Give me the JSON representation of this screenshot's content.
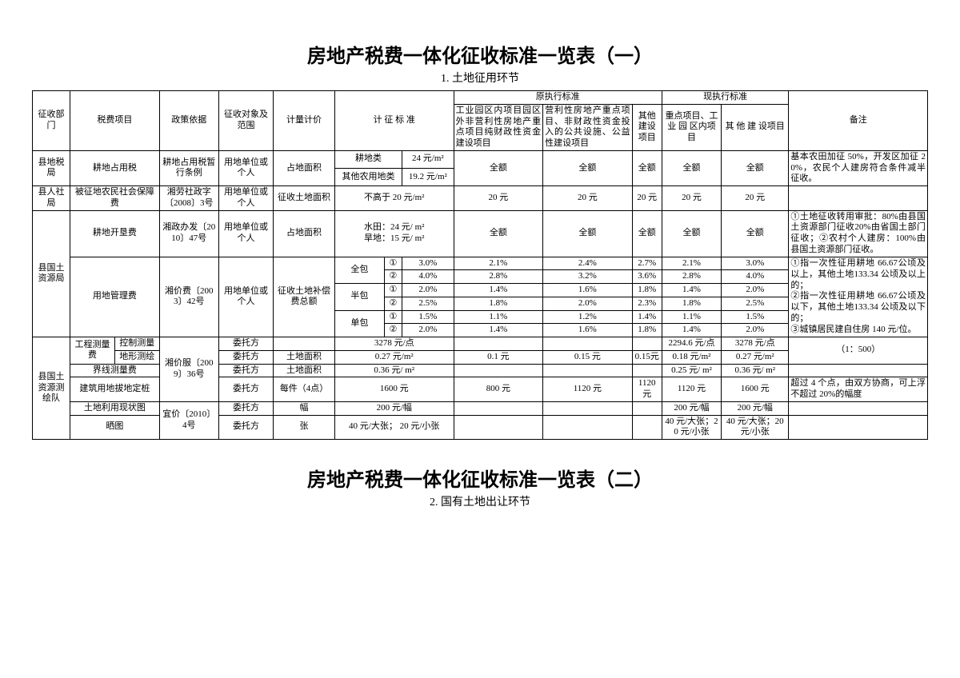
{
  "title1": "房地产税费一体化征收标准一览表（一）",
  "subtitle1": "1.  土地征用环节",
  "title2": "房地产税费一体化征收标准一览表（二）",
  "subtitle2": "2. 国有土地出让环节",
  "headers": {
    "dept": "征收部门",
    "item": "税费项目",
    "basis": "政策依据",
    "target": "征收对象及范围",
    "measure": "计量计价",
    "std": "计  征  标  准",
    "orig": "原执行标准",
    "cur": "现执行标准",
    "note": "备注",
    "orig1": "工业园区内项目园区外非营利性房地产重点项目纯财政性资金建设项目",
    "orig2": "营利性房地产重点项目、非财政性资金投入的公共设施、公益性建设项目",
    "orig3": "其他建设项目",
    "cur1": "重点项目、工 业 园 区内项目",
    "cur2": "其 他 建 设项目"
  },
  "r1": {
    "dept": "县地税局",
    "item": "耕地占用税",
    "basis": "耕地占用税暂行条例",
    "target": "用地单位或个人",
    "measure": "占地面积",
    "std1a": "耕地类",
    "std1b": "24 元/m²",
    "std2a": "其他农用地类",
    "std2b": "19.2 元/m²",
    "orig1": "全额",
    "orig2": "全额",
    "orig3": "全额",
    "cur1": "全额",
    "cur2": "全额",
    "note": "基本农田加征 50%，开发区加征 20%，农民个人建房符合条件减半征收。"
  },
  "r2": {
    "dept": "县人社局",
    "item": "被征地农民社会保障费",
    "basis": "湘劳社政字〔2008〕3号",
    "target": "用地单位或个人",
    "measure": "征收土地面积",
    "std": "不高于 20 元/m²",
    "orig1": "20 元",
    "orig2": "20 元",
    "orig3": "20 元",
    "cur1": "20 元",
    "cur2": "20 元",
    "note": ""
  },
  "r3": {
    "dept": "县国土资源局",
    "item": "耕地开垦费",
    "basis": "湘政办发〔2010〕47号",
    "target": "用地单位或个人",
    "measure": "占地面积",
    "std": "水田：24 元/ m²\n旱地：15 元/ m²",
    "orig1": "全额",
    "orig2": "全额",
    "orig3": "全额",
    "cur1": "全额",
    "cur2": "全额",
    "note": "①土地征收转用审批：80%由县国土资源部门征收20%由省国土部门征收；②农村个人建房：100%由县国土资源部门征收。"
  },
  "r4": {
    "item": "用地管理费",
    "basis": "湘价费〔2003〕42号",
    "target": "用地单位或个人",
    "measure": "征收土地补偿费总额",
    "p1": "全包",
    "p2": "半包",
    "p3": "单包",
    "c1": "①",
    "c2": "②",
    "rows": [
      {
        "s": "3.0%",
        "o1": "2.1%",
        "o2": "2.4%",
        "o3": "2.7%",
        "u1": "2.1%",
        "u2": "3.0%"
      },
      {
        "s": "4.0%",
        "o1": "2.8%",
        "o2": "3.2%",
        "o3": "3.6%",
        "u1": "2.8%",
        "u2": "4.0%"
      },
      {
        "s": "2.0%",
        "o1": "1.4%",
        "o2": "1.6%",
        "o3": "1.8%",
        "u1": "1.4%",
        "u2": "2.0%"
      },
      {
        "s": "2.5%",
        "o1": "1.8%",
        "o2": "2.0%",
        "o3": "2.3%",
        "u1": "1.8%",
        "u2": "2.5%"
      },
      {
        "s": "1.5%",
        "o1": "1.1%",
        "o2": "1.2%",
        "o3": "1.4%",
        "u1": "1.1%",
        "u2": "1.5%"
      },
      {
        "s": "2.0%",
        "o1": "1.4%",
        "o2": "1.6%",
        "o3": "1.8%",
        "u1": "1.4%",
        "u2": "2.0%"
      }
    ],
    "note": "①指一次性征用耕地 66.67公顷及以上，其他土地133.34 公顷及以上的；\n②指一次性征用耕地 66.67公顷及以下，其他土地133.34 公顷及以下的；\n③城镇居民建自住房 140 元/位。"
  },
  "r5": {
    "dept": "县国土资源测绘队",
    "item1": "工程测量费",
    "sub1": "控制测量",
    "sub2": "地形测绘",
    "basis": "湘价服〔2009〕36号",
    "target": "委托方",
    "measure2": "土地面积",
    "std1": "3278 元/点",
    "std2": "0.27 元/m²",
    "o1_2": "0.1 元",
    "o2_2": "0.15 元",
    "o3_2": "0.15元",
    "u1_1": "2294.6 元/点",
    "u2_1": "3278 元/点",
    "u1_2": "0.18 元/m²",
    "u2_2": "0.27 元/m²",
    "note": "（1：500）"
  },
  "r6": {
    "item": "界线测量费",
    "target": "委托方",
    "measure": "土地面积",
    "std": "0.36 元/ m²",
    "u1": "0.25 元/ m²",
    "u2": "0.36 元/ m²"
  },
  "r7": {
    "item": "建筑用地拔地定桩",
    "target": "委托方",
    "measure": "每件（4点）",
    "std": "1600 元",
    "o1": "800 元",
    "o2": "1120 元",
    "o3": "1120元",
    "u1": "1120 元",
    "u2": "1600 元",
    "note": "超过 4 个点，由双方协商，可上浮不超过 20%的幅度"
  },
  "r8": {
    "item": "土地利用现状图",
    "basis": "宜价〔2010〕4号",
    "target": "委托方",
    "measure": "幅",
    "std": "200 元/幅",
    "u1": "200 元/幅",
    "u2": "200 元/幅"
  },
  "r9": {
    "item": "晒图",
    "target": "委托方",
    "measure": "张",
    "std": "40 元/大张； 20 元/小张",
    "u1": "40 元/大张；20 元/小张",
    "u2": "40 元/大张；20 元/小张"
  }
}
